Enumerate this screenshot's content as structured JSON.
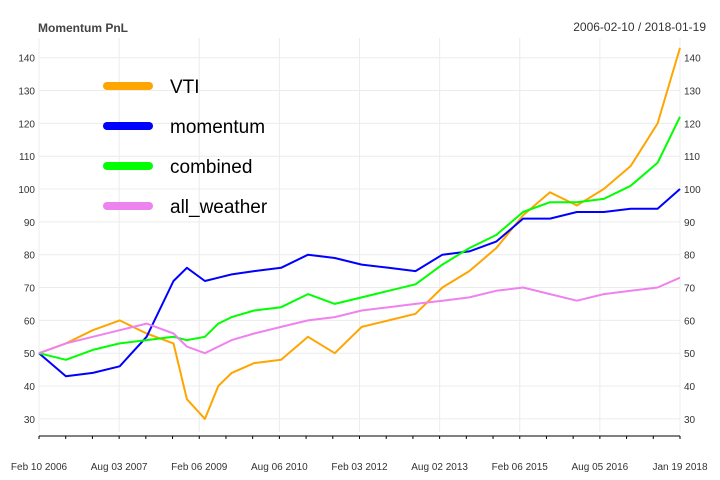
{
  "chart_data": {
    "type": "line",
    "title": "Momentum PnL",
    "date_range": "2006-02-10 / 2018-01-19",
    "x_tick_labels": [
      "Feb 10 2006",
      "Aug 03 2007",
      "Feb 06 2009",
      "Aug 06 2010",
      "Feb 03 2012",
      "Aug 02 2013",
      "Feb 06 2015",
      "Aug 05 2016",
      "Jan 19 2018"
    ],
    "y_ticks": [
      30,
      40,
      50,
      60,
      70,
      80,
      90,
      100,
      110,
      120,
      130,
      140
    ],
    "ylim": [
      26,
      146
    ],
    "grid": true,
    "legend_position": "top-left",
    "x": [
      "2006-02",
      "2006-08",
      "2007-02",
      "2007-08",
      "2008-02",
      "2008-08",
      "2008-11",
      "2009-03",
      "2009-06",
      "2009-09",
      "2010-02",
      "2010-08",
      "2011-02",
      "2011-08",
      "2012-02",
      "2012-08",
      "2013-02",
      "2013-08",
      "2014-02",
      "2014-08",
      "2015-02",
      "2015-08",
      "2016-02",
      "2016-08",
      "2017-02",
      "2017-08",
      "2018-01"
    ],
    "series": [
      {
        "name": "VTI",
        "color": "#FFA500",
        "values": [
          50,
          53,
          57,
          60,
          56,
          53,
          36,
          30,
          40,
          44,
          47,
          48,
          55,
          50,
          58,
          60,
          62,
          70,
          75,
          82,
          92,
          99,
          95,
          100,
          107,
          120,
          143
        ]
      },
      {
        "name": "momentum",
        "color": "#0000FF",
        "values": [
          50,
          43,
          44,
          46,
          55,
          72,
          76,
          72,
          73,
          74,
          75,
          76,
          80,
          79,
          77,
          76,
          75,
          80,
          81,
          84,
          91,
          91,
          93,
          93,
          94,
          94,
          100
        ]
      },
      {
        "name": "combined",
        "color": "#00FF00",
        "values": [
          50,
          48,
          51,
          53,
          54,
          55,
          54,
          55,
          59,
          61,
          63,
          64,
          68,
          65,
          67,
          69,
          71,
          77,
          82,
          86,
          93,
          96,
          96,
          97,
          101,
          108,
          122
        ]
      },
      {
        "name": "all_weather",
        "color": "#EE82EE",
        "values": [
          50,
          53,
          55,
          57,
          59,
          56,
          52,
          50,
          52,
          54,
          56,
          58,
          60,
          61,
          63,
          64,
          65,
          66,
          67,
          69,
          70,
          68,
          66,
          68,
          69,
          70,
          73
        ]
      }
    ]
  }
}
